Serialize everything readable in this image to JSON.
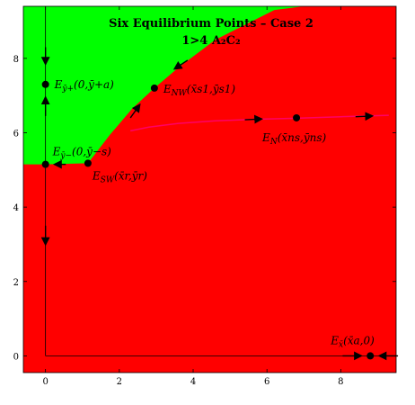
{
  "chart_data": {
    "type": "phase-portrait",
    "title": "Six Equilibrium Points – Case 2",
    "subtitle": "1>4 A₂C₂",
    "xlim": [
      -0.6,
      9.5
    ],
    "ylim": [
      -0.45,
      9.4
    ],
    "x_ticks": [
      "0",
      "2",
      "4",
      "6",
      "8"
    ],
    "x_tick_values": [
      0,
      2,
      4,
      6,
      8
    ],
    "y_ticks": [
      "0",
      "2",
      "4",
      "6",
      "8"
    ],
    "y_tick_values": [
      0,
      2,
      4,
      6,
      8
    ],
    "grid": false,
    "region_colors": {
      "green": "#00ff00",
      "red": "#ff0000",
      "curve": "#ff0066"
    },
    "separatrix": {
      "x": [
        0,
        1.15,
        1.75,
        2.35,
        2.95,
        3.6,
        4.6,
        6.2,
        7.0
      ],
      "y": [
        5.15,
        5.18,
        5.95,
        6.65,
        7.2,
        7.75,
        8.5,
        9.3,
        9.4
      ]
    },
    "manifold_curve": {
      "x": [
        2.3,
        2.8,
        3.6,
        4.6,
        5.6,
        6.8,
        8.0,
        9.3
      ],
      "y": [
        6.05,
        6.15,
        6.25,
        6.32,
        6.36,
        6.39,
        6.43,
        6.47
      ]
    },
    "points": [
      {
        "label": "Eȳ₊(0,ȳ₊a)",
        "x": 0,
        "y": 7.3
      },
      {
        "label": "Eȳ₋(0,ȳ₋s)",
        "x": 0,
        "y": 5.15
      },
      {
        "label": "Eₛᵂ(x̄ᵣ,ȳᵣ)",
        "x": 1.15,
        "y": 5.18
      },
      {
        "label": "Eɴᵂ(x̄ₛ₁,ȳₛ₁)",
        "x": 2.95,
        "y": 7.2
      },
      {
        "label": "Eɴ(x̄ₙₛ,ȳₙₛ)",
        "x": 6.8,
        "y": 6.4
      },
      {
        "label": "Ex̄(x̄ₐ,0)",
        "x": 8.8,
        "y": 0
      }
    ],
    "point_labels": {
      "yplus": "E",
      "yplus_sub": "ȳ+",
      "yplus_rest": "(0,ȳ+a)",
      "yminus": "E",
      "yminus_sub": "ȳ−",
      "yminus_rest": "(0,ȳ−s)",
      "sw": "E",
      "sw_sub": "SW",
      "sw_rest": "(x̄r,ȳr)",
      "nw": "E",
      "nw_sub": "NW",
      "nw_rest": "(x̄s1,ȳs1)",
      "n": "E",
      "n_sub": "N",
      "n_rest": "(x̄ns,ȳns)",
      "xbar": "E",
      "xbar_sub": "x̄",
      "xbar_rest": "(x̄a,0)"
    }
  }
}
